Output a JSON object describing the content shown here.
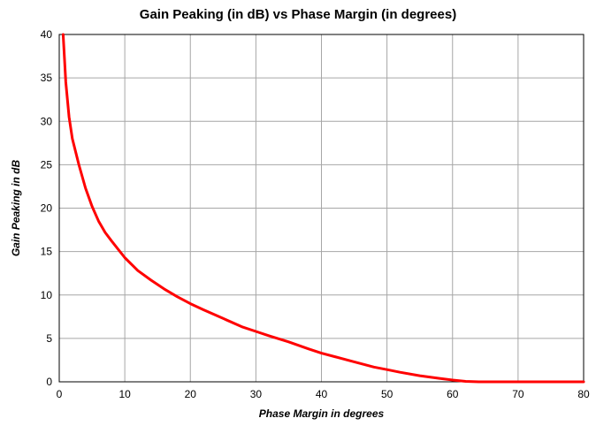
{
  "chart_data": {
    "type": "line",
    "title": "Gain Peaking (in dB)  vs  Phase Margin (in degrees)",
    "xlabel": "Phase Margin in degrees",
    "ylabel": "Gain Peaking in dB",
    "xlim": [
      0,
      80
    ],
    "ylim": [
      0,
      40
    ],
    "xticks": [
      0,
      10,
      20,
      30,
      40,
      50,
      60,
      70,
      80
    ],
    "yticks": [
      0,
      5,
      10,
      15,
      20,
      25,
      30,
      35,
      40
    ],
    "xtick_labels": [
      "0",
      "10",
      "20",
      "30",
      "40",
      "50",
      "60",
      "70",
      "80"
    ],
    "ytick_labels": [
      "0",
      "5",
      "10",
      "15",
      "20",
      "25",
      "30",
      "35",
      "40"
    ],
    "grid": true,
    "legend": "none",
    "colors": {
      "series": "#ff0000",
      "grid": "#a6a6a6",
      "frame": "#000000"
    },
    "series": [
      {
        "x": [
          0.6,
          1,
          1.5,
          2,
          3,
          4,
          5,
          6,
          7,
          8,
          10,
          12,
          14,
          16,
          18,
          20,
          22,
          25,
          28,
          30,
          32,
          35,
          38,
          40,
          42,
          45,
          48,
          50,
          52,
          55,
          58,
          60,
          62,
          64,
          66,
          70,
          75,
          80
        ],
        "y": [
          40,
          34.5,
          30.5,
          28,
          25,
          22.3,
          20.2,
          18.5,
          17.2,
          16.2,
          14.3,
          12.8,
          11.7,
          10.7,
          9.8,
          9.0,
          8.3,
          7.3,
          6.3,
          5.8,
          5.3,
          4.6,
          3.8,
          3.3,
          2.9,
          2.3,
          1.7,
          1.4,
          1.1,
          0.7,
          0.4,
          0.2,
          0.05,
          0.0,
          0.0,
          0.0,
          0.0,
          0.0
        ]
      }
    ]
  }
}
